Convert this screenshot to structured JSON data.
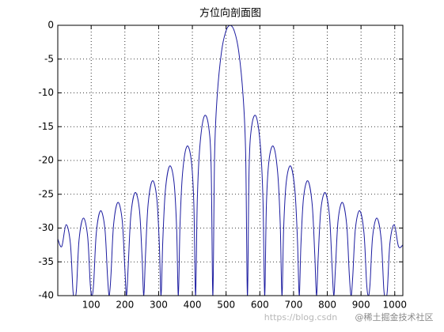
{
  "chart_data": {
    "type": "line",
    "title": "方位向剖面图",
    "x": [
      1,
      12.8,
      25.6,
      38.4,
      46.1,
      51.2,
      56.3,
      64,
      76.8,
      89.6,
      97.3,
      102.4,
      107.5,
      115.2,
      128,
      140.8,
      148.5,
      153.6,
      158.7,
      166.4,
      179.2,
      192,
      199.7,
      204.8,
      209.9,
      217.6,
      230.4,
      243.2,
      250.9,
      256,
      261.1,
      268.8,
      281.6,
      294.4,
      302.1,
      307.2,
      312.3,
      320,
      332.8,
      345.6,
      353.3,
      358.4,
      363.5,
      371.2,
      384,
      396.8,
      404.5,
      409.6,
      414.7,
      422.4,
      435.2,
      448,
      455.7,
      460.8,
      465.9,
      473.6,
      486.4,
      499.2,
      512,
      524.8,
      537.6,
      550.4,
      558.1,
      563.2,
      568.3,
      576,
      588.8,
      601.6,
      609.3,
      614.4,
      619.5,
      627.2,
      640,
      652.8,
      660.5,
      665.6,
      670.7,
      678.4,
      691.2,
      704,
      711.7,
      716.8,
      721.9,
      729.6,
      742.4,
      755.2,
      762.9,
      768,
      773.1,
      780.8,
      793.6,
      806.4,
      814.1,
      819.2,
      824.3,
      832,
      844.8,
      857.6,
      865.3,
      870.4,
      875.5,
      883.2,
      896,
      908.8,
      916.5,
      921.6,
      926.7,
      934.4,
      947.2,
      960,
      967.7,
      972.8,
      977.9,
      985.6,
      998.4,
      1011.2,
      1024
    ],
    "series": [
      {
        "color": "#1c1ca0",
        "values": [
          -31.6,
          -32.73,
          -29.5,
          -32.28,
          -39.32,
          -40,
          -39.13,
          -31.79,
          -28.53,
          -31.28,
          -38.31,
          -40,
          -38.1,
          -30.74,
          -27.44,
          -30.16,
          -37.17,
          -40,
          -36.92,
          -29.54,
          -26.2,
          -28.87,
          -35.85,
          -40,
          -35.56,
          -28.15,
          -24.75,
          -27.36,
          -34.29,
          -40,
          -33.95,
          -26.49,
          -23.01,
          -25.52,
          -32.4,
          -40,
          -31.96,
          -24.43,
          -20.82,
          -23.19,
          -29.97,
          -40,
          -29.39,
          -21.74,
          -17.9,
          -20,
          -26.59,
          -40,
          -25.72,
          -17.81,
          -13.46,
          -14.89,
          -20.97,
          -40,
          -19.23,
          -10.45,
          -3.92,
          -0.91,
          0,
          -0.91,
          -3.92,
          -10.45,
          -19.23,
          -40,
          -20.97,
          -14.89,
          -13.46,
          -17.81,
          -25.72,
          -40,
          -26.59,
          -20,
          -17.9,
          -21.74,
          -29.39,
          -40,
          -29.97,
          -23.19,
          -20.82,
          -24.43,
          -31.96,
          -40,
          -32.4,
          -25.52,
          -23.01,
          -26.49,
          -33.95,
          -40,
          -34.29,
          -27.36,
          -24.75,
          -28.15,
          -35.56,
          -40,
          -35.85,
          -28.87,
          -26.2,
          -29.54,
          -36.92,
          -40,
          -37.17,
          -30.16,
          -27.44,
          -30.74,
          -38.1,
          -40,
          -38.31,
          -31.28,
          -28.53,
          -31.79,
          -39.13,
          -40,
          -39.32,
          -32.28,
          -29.5,
          -32.73,
          -32.5
        ]
      }
    ],
    "xlim": [
      1,
      1024
    ],
    "xticks": [
      100,
      200,
      300,
      400,
      500,
      600,
      700,
      800,
      900,
      1000
    ],
    "ylim": [
      -40,
      0
    ],
    "yticks": [
      0,
      -5,
      -10,
      -15,
      -20,
      -25,
      -30,
      -35,
      -40
    ],
    "grid": true,
    "annotations": [
      "https://blog.csdn",
      "@稀土掘金技术社区"
    ]
  }
}
